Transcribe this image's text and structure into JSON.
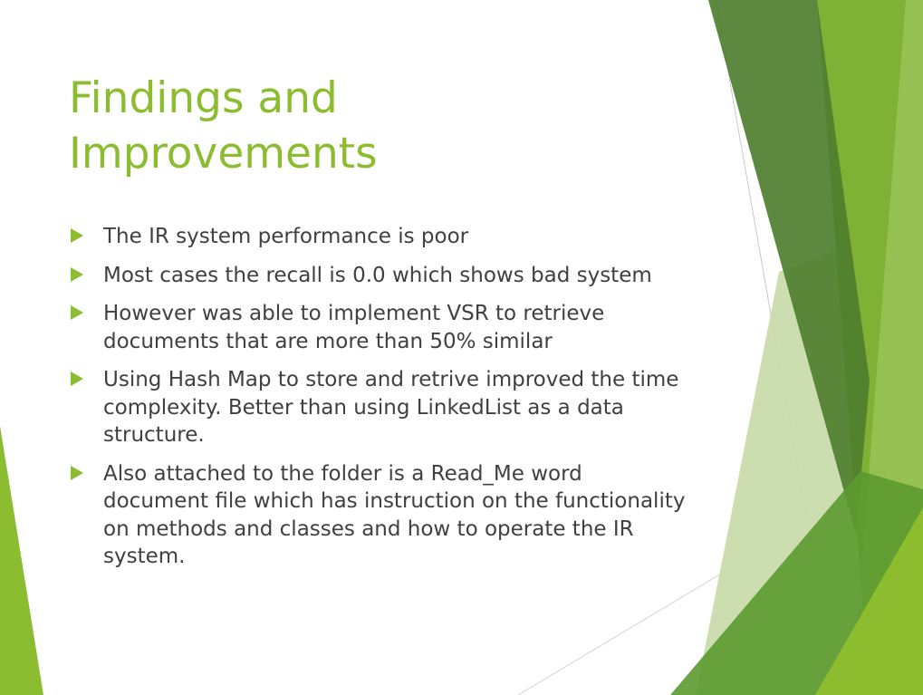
{
  "slide": {
    "title": "Findings and Improvements",
    "bullets": [
      {
        "text": "The IR system performance is poor"
      },
      {
        "text": "Most cases the recall is 0.0 which shows bad system"
      },
      {
        "text": "However was able to implement VSR to retrieve documents that are more than 50% similar"
      },
      {
        "text": "Using Hash Map to store and retrive improved the time complexity. Better than using LinkedList as a data structure."
      },
      {
        "text": "Also attached to the folder is a Read_Me word document file which has instruction on the functionality on methods and classes and how to operate the IR system."
      }
    ]
  },
  "theme": {
    "accent": "#8cbc2f",
    "text_color": "#404040",
    "dark_green": "#4e7d2e",
    "pale_green": "#c5d9a7"
  }
}
